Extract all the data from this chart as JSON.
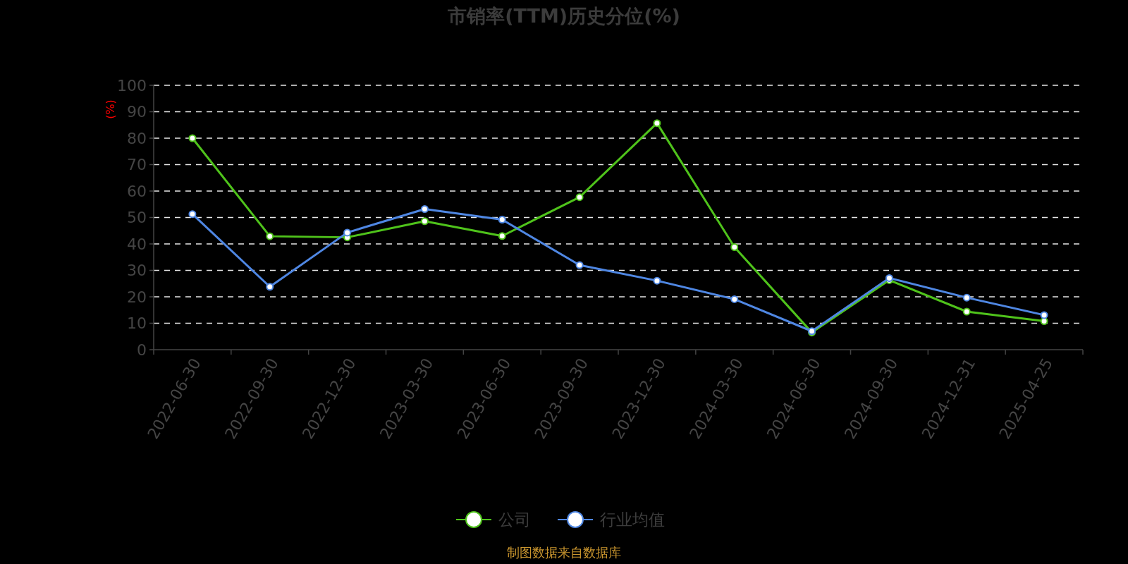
{
  "chart_data": {
    "type": "line",
    "title": "市销率(TTM)历史分位(%)",
    "ylabel": "(%)",
    "categories": [
      "2022-06-30",
      "2022-09-30",
      "2022-12-30",
      "2023-03-30",
      "2023-06-30",
      "2023-09-30",
      "2023-12-30",
      "2024-03-30",
      "2024-06-30",
      "2024-09-30",
      "2024-12-31",
      "2025-04-25"
    ],
    "series": [
      {
        "name": "公司",
        "color": "#4fc31b",
        "values": [
          80.0,
          42.9,
          42.5,
          48.6,
          43.0,
          57.7,
          85.7,
          38.8,
          6.5,
          26.3,
          14.4,
          10.8
        ]
      },
      {
        "name": "行业均值",
        "color": "#4f87e3",
        "values": [
          51.3,
          23.8,
          44.3,
          53.2,
          49.2,
          32.0,
          26.1,
          19.1,
          7.0,
          27.1,
          19.7,
          13.1
        ]
      }
    ],
    "ylim": [
      0,
      100
    ],
    "yticks": [
      0,
      10,
      20,
      30,
      40,
      50,
      60,
      70,
      80,
      90,
      100
    ],
    "grid": "y",
    "legend": "bottom",
    "marker": "circle",
    "line_style": "solid",
    "annotations": [
      "制图数据来自数据库"
    ]
  }
}
